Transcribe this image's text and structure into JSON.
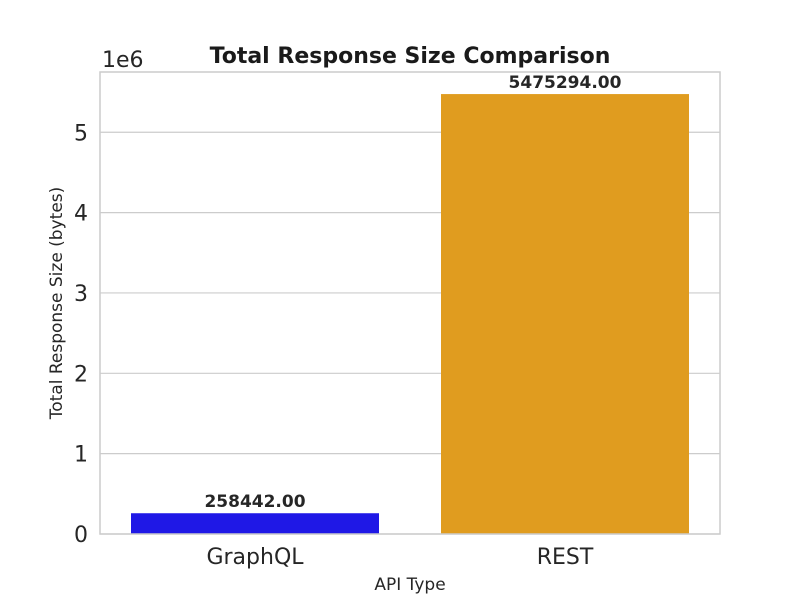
{
  "chart_data": {
    "type": "bar",
    "title": "Total Response Size Comparison",
    "xlabel": "API Type",
    "ylabel": "Total Response Size (bytes)",
    "categories": [
      "GraphQL",
      "REST"
    ],
    "values": [
      258442.0,
      5475294.0
    ],
    "data_labels": [
      "258442.00",
      "5475294.00"
    ],
    "colors": [
      "#1f18e6",
      "#e09c1f"
    ],
    "ylim": [
      0,
      5750000
    ],
    "yticks": [
      0,
      1000000,
      2000000,
      3000000,
      4000000,
      5000000
    ],
    "ytick_labels": [
      "0",
      "1",
      "2",
      "3",
      "4",
      "5"
    ],
    "y_offset_label": "1e6",
    "grid": true,
    "legend": "none"
  }
}
